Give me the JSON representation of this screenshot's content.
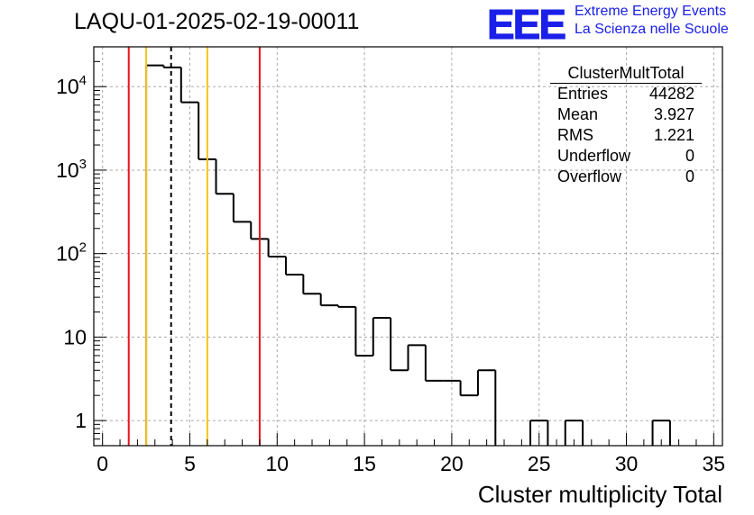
{
  "header": {
    "run_title": "LAQU-01-2025-02-19-00011",
    "logo_text": "EEE",
    "tagline_1": "Extreme Energy Events",
    "tagline_2": "La Scienza nelle Scuole",
    "logo_color": "#1b20e8"
  },
  "stats": {
    "title": "ClusterMultTotal",
    "rows": [
      {
        "label": "Entries",
        "value": "44282"
      },
      {
        "label": "Mean",
        "value": "3.927"
      },
      {
        "label": "RMS",
        "value": "1.221"
      },
      {
        "label": "Underflow",
        "value": "0"
      },
      {
        "label": "Overflow",
        "value": "0"
      }
    ]
  },
  "chart_data": {
    "type": "histogram",
    "title": "LAQU-01-2025-02-19-00011",
    "xlabel": "Cluster multiplicity Total",
    "ylabel": "",
    "xlim": [
      -0.5,
      35.5
    ],
    "ylim": [
      0.5,
      30000
    ],
    "y_scale": "log",
    "grid": true,
    "x_ticks": [
      0,
      5,
      10,
      15,
      20,
      25,
      30,
      35
    ],
    "x_tick_labels": [
      "0",
      "5",
      "10",
      "15",
      "20",
      "25",
      "30",
      "35"
    ],
    "y_ticks": [
      1,
      10,
      100,
      1000,
      10000
    ],
    "y_tick_labels": [
      "1",
      "10",
      "10^2",
      "10^3",
      "10^4"
    ],
    "bin_width": 1,
    "bin_centers": [
      3,
      4,
      5,
      6,
      7,
      8,
      9,
      10,
      11,
      12,
      13,
      14,
      15,
      16,
      17,
      18,
      19,
      20,
      21,
      22,
      23,
      24,
      25,
      26,
      27,
      28,
      29,
      30,
      31,
      32
    ],
    "counts": [
      18000,
      17000,
      6500,
      1350,
      520,
      240,
      150,
      92,
      56,
      33,
      24,
      23,
      6,
      17,
      4,
      8,
      3,
      3,
      2,
      4,
      0,
      0,
      1,
      0,
      1,
      0,
      0,
      0,
      0,
      1
    ],
    "vertical_lines": [
      {
        "x": 1.5,
        "color": "#e8141c",
        "style": "solid"
      },
      {
        "x": 2.5,
        "color": "#f2c418",
        "style": "solid"
      },
      {
        "x": 3.927,
        "color": "#000000",
        "style": "dashed"
      },
      {
        "x": 6,
        "color": "#f2c418",
        "style": "solid"
      },
      {
        "x": 9,
        "color": "#e8141c",
        "style": "solid"
      }
    ]
  }
}
